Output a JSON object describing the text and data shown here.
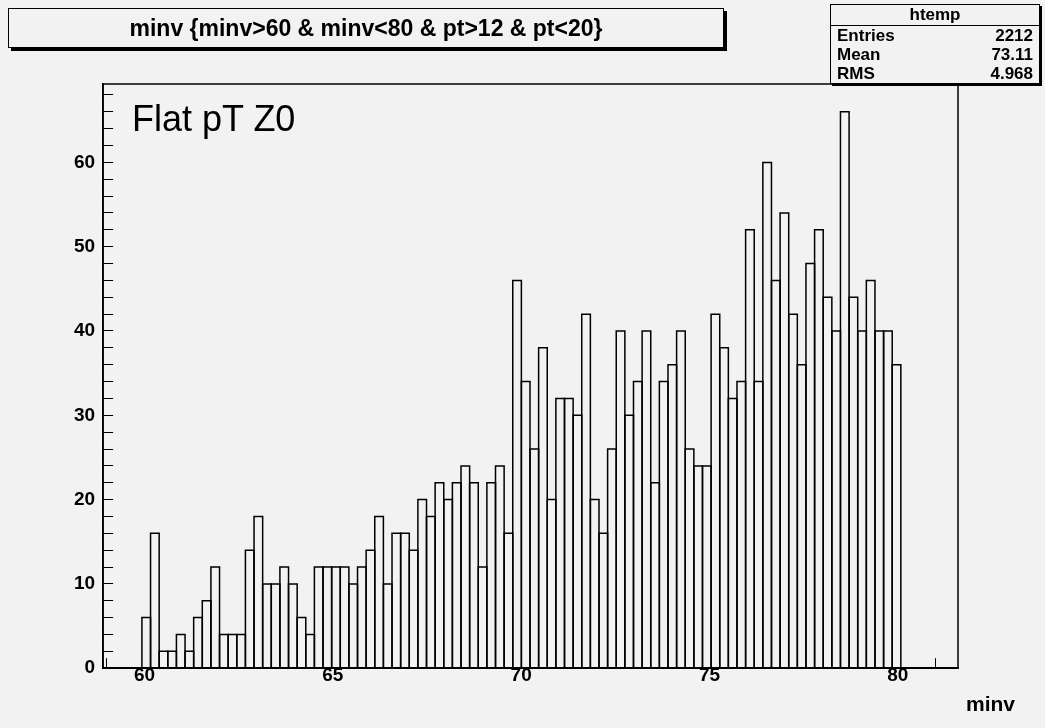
{
  "chart_data": {
    "type": "histogram",
    "title": "minv {minv>60 & minv<80 & pt>12 & pt<20}",
    "xlabel": "minv",
    "annotations": [
      "Flat pT Z0",
      "htemp",
      "Entries 2212",
      "Mean 73.11",
      "RMS 4.968"
    ],
    "bins": [
      59.93,
      60.159,
      60.388,
      60.617,
      60.846,
      61.075,
      61.304,
      61.533,
      61.762,
      61.991,
      62.22,
      62.449,
      62.678,
      62.907,
      63.136,
      63.365,
      63.594,
      63.823,
      64.052,
      64.281,
      64.51,
      64.739,
      64.968,
      65.197,
      65.426,
      65.655,
      65.884,
      66.113,
      66.342,
      66.571,
      66.8,
      67.029,
      67.258,
      67.487,
      67.716,
      67.945,
      68.174,
      68.403,
      68.632,
      68.861,
      69.09,
      69.319,
      69.548,
      69.777,
      70.006,
      70.235,
      70.464,
      70.693,
      70.922,
      71.151,
      71.38,
      71.609,
      71.838,
      72.067,
      72.296,
      72.525,
      72.754,
      72.983,
      73.212,
      73.441,
      73.67,
      73.899,
      74.128,
      74.357,
      74.586,
      74.815,
      75.044,
      75.273,
      75.502,
      75.731,
      75.96,
      76.189,
      76.418,
      76.647,
      76.876,
      77.105,
      77.334,
      77.563,
      77.792,
      78.021,
      78.25,
      78.479,
      78.708,
      78.937,
      79.166,
      79.395,
      79.624,
      79.853,
      80.082
    ],
    "values": [
      6,
      16,
      2,
      2,
      4,
      2,
      6,
      8,
      12,
      4,
      4,
      4,
      14,
      18,
      10,
      10,
      12,
      10,
      6,
      4,
      12,
      12,
      12,
      12,
      10,
      12,
      14,
      18,
      10,
      16,
      16,
      14,
      20,
      18,
      22,
      20,
      22,
      24,
      22,
      12,
      22,
      24,
      16,
      46,
      34,
      26,
      38,
      20,
      32,
      32,
      30,
      42,
      20,
      16,
      26,
      40,
      30,
      34,
      40,
      22,
      34,
      36,
      40,
      26,
      24,
      24,
      42,
      38,
      32,
      34,
      52,
      34,
      60,
      46,
      54,
      42,
      36,
      48,
      52,
      44,
      40,
      66,
      44,
      40,
      46,
      40,
      40,
      36
    ],
    "color": "#000000",
    "xlim": [
      58.9,
      81.6
    ],
    "xticks": [
      {
        "value": 59,
        "label": null
      },
      60,
      {
        "value": 61,
        "label": null
      },
      {
        "value": 62,
        "label": null
      },
      {
        "value": 63,
        "label": null
      },
      {
        "value": 64,
        "label": null
      },
      65,
      {
        "value": 66,
        "label": null
      },
      {
        "value": 67,
        "label": null
      },
      {
        "value": 68,
        "label": null
      },
      {
        "value": 69,
        "label": null
      },
      70,
      {
        "value": 71,
        "label": null
      },
      {
        "value": 72,
        "label": null
      },
      {
        "value": 73,
        "label": null
      },
      {
        "value": 74,
        "label": null
      },
      75,
      {
        "value": 76,
        "label": null
      },
      {
        "value": 77,
        "label": null
      },
      {
        "value": 78,
        "label": null
      },
      {
        "value": 79,
        "label": null
      },
      80,
      {
        "value": 81,
        "label": null
      }
    ],
    "ylim": [
      0,
      69.3
    ],
    "yticks": [
      0,
      {
        "value": 2,
        "label": null
      },
      {
        "value": 4,
        "label": null
      },
      {
        "value": 6,
        "label": null
      },
      {
        "value": 8,
        "label": null
      },
      10,
      {
        "value": 12,
        "label": null
      },
      {
        "value": 14,
        "label": null
      },
      {
        "value": 16,
        "label": null
      },
      {
        "value": 18,
        "label": null
      },
      20,
      {
        "value": 22,
        "label": null
      },
      {
        "value": 24,
        "label": null
      },
      {
        "value": 26,
        "label": null
      },
      {
        "value": 28,
        "label": null
      },
      30,
      {
        "value": 32,
        "label": null
      },
      {
        "value": 34,
        "label": null
      },
      {
        "value": 36,
        "label": null
      },
      {
        "value": 38,
        "label": null
      },
      40,
      {
        "value": 42,
        "label": null
      },
      {
        "value": 44,
        "label": null
      },
      {
        "value": 46,
        "label": null
      },
      {
        "value": 48,
        "label": null
      },
      50,
      {
        "value": 52,
        "label": null
      },
      {
        "value": 54,
        "label": null
      },
      {
        "value": 56,
        "label": null
      },
      {
        "value": 58,
        "label": null
      },
      60,
      {
        "value": 62,
        "label": null
      },
      {
        "value": 64,
        "label": null
      },
      {
        "value": 66,
        "label": null
      },
      {
        "value": 68,
        "label": null
      }
    ]
  }
}
